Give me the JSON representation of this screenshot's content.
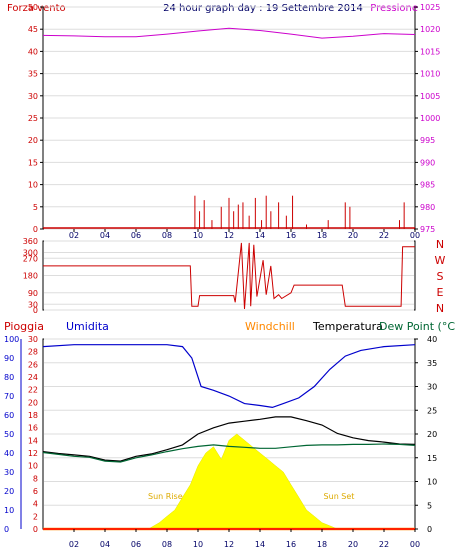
{
  "header": {
    "left_label": "Forza vento",
    "title": "24 hour graph day : 19 Settembre 2014",
    "right_label": "Pressione"
  },
  "bottom_header": {
    "rain": "Pioggia",
    "humidity": "Umidita",
    "windchill": "Windchill",
    "temperature": "Temperatura",
    "dewpoint": "Dew Point (°C"
  },
  "annotations": {
    "sunrise": "Sun Rise",
    "sunset": "Sun Set"
  },
  "colors": {
    "wind": "#cc0000",
    "pressure": "#cc00cc",
    "direction": "#cc0000",
    "humidity": "#0000cc",
    "temperature": "#000000",
    "dewpoint": "#006633",
    "windchill": "#ff8800",
    "solar": "#ffff00",
    "rain": "#ff0000"
  },
  "chart_data": [
    {
      "type": "line",
      "x_ticks": [
        "02",
        "04",
        "06",
        "08",
        "10",
        "12",
        "14",
        "16",
        "18",
        "20",
        "22",
        "00"
      ],
      "y_left": {
        "label": "Forza vento",
        "ticks": [
          0,
          5,
          10,
          15,
          20,
          25,
          30,
          35,
          40,
          45,
          50
        ],
        "range": [
          0,
          50
        ]
      },
      "y_right": {
        "label": "Pressione",
        "ticks": [
          975,
          980,
          985,
          990,
          995,
          1000,
          1005,
          1010,
          1015,
          1020,
          1025
        ],
        "range": [
          975,
          1025
        ]
      },
      "series": [
        {
          "name": "Pressione",
          "axis": "right",
          "x": [
            0,
            2,
            4,
            6,
            8,
            10,
            12,
            14,
            16,
            18,
            20,
            22,
            24
          ],
          "values": [
            1018.6,
            1018.5,
            1018.3,
            1018.3,
            1018.9,
            1019.6,
            1020.2,
            1019.7,
            1018.9,
            1018.0,
            1018.4,
            1019.0,
            1018.8
          ]
        },
        {
          "name": "Forza vento",
          "axis": "left",
          "x": [
            9.8,
            10.1,
            10.4,
            10.9,
            11.5,
            12.0,
            12.3,
            12.6,
            12.9,
            13.3,
            13.7,
            14.1,
            14.4,
            14.7,
            15.2,
            15.7,
            16.1,
            17.0,
            18.4,
            19.5,
            19.8,
            23.0,
            23.3
          ],
          "values": [
            7.5,
            4,
            6.5,
            2,
            5,
            7,
            4,
            5.5,
            6,
            3,
            7,
            2,
            7.5,
            4,
            6,
            3,
            7.5,
            1,
            2,
            6,
            5,
            2,
            6
          ]
        }
      ]
    },
    {
      "type": "line",
      "y_labels": [
        "N",
        "W",
        "S",
        "E",
        "N"
      ],
      "y_ticks": [
        0,
        30,
        90,
        180,
        270,
        300,
        360
      ],
      "range": [
        0,
        360
      ],
      "series": [
        {
          "name": "direction",
          "x": [
            0,
            9.5,
            9.6,
            10.0,
            10.1,
            12.3,
            12.4,
            12.8,
            13.0,
            13.3,
            13.4,
            13.6,
            13.8,
            14.2,
            14.4,
            14.7,
            14.9,
            15.2,
            15.4,
            16.0,
            16.2,
            19.3,
            19.5,
            23.1,
            23.2,
            24
          ],
          "values": [
            230,
            230,
            20,
            20,
            75,
            75,
            40,
            350,
            5,
            350,
            20,
            340,
            70,
            260,
            80,
            230,
            60,
            80,
            60,
            90,
            130,
            130,
            20,
            20,
            330,
            330
          ]
        }
      ]
    },
    {
      "type": "line",
      "x_ticks": [
        "02",
        "04",
        "06",
        "08",
        "10",
        "12",
        "14",
        "16",
        "18",
        "20",
        "22",
        "00"
      ],
      "y_left_outer": {
        "label": "Umidita",
        "ticks": [
          0,
          10,
          20,
          30,
          40,
          50,
          60,
          70,
          80,
          90,
          100
        ],
        "range": [
          0,
          100
        ]
      },
      "y_left_inner": {
        "label": "Pioggia",
        "ticks": [
          0,
          2,
          4,
          6,
          8,
          10,
          12,
          14,
          16,
          18,
          20,
          22,
          24,
          26,
          28,
          30
        ],
        "range": [
          0,
          30
        ]
      },
      "y_right": {
        "label": "Temperatura",
        "ticks": [
          0,
          5,
          10,
          15,
          20,
          25,
          30,
          35,
          40
        ],
        "range": [
          0,
          40
        ]
      },
      "series": [
        {
          "name": "Umidita",
          "axis": "left_outer",
          "x": [
            0,
            2,
            4,
            6,
            8,
            9,
            9.6,
            10.2,
            11,
            12,
            13,
            14,
            14.8,
            15.5,
            16.5,
            17.5,
            18.5,
            19.5,
            20.5,
            22,
            24
          ],
          "values": [
            96,
            97,
            97,
            97,
            97,
            96,
            90,
            75,
            73,
            70,
            66,
            65,
            64,
            66,
            69,
            75,
            84,
            91,
            94,
            96,
            97
          ]
        },
        {
          "name": "Temperatura",
          "axis": "right",
          "x": [
            0,
            1,
            2,
            3,
            4,
            5,
            6,
            7,
            8,
            9,
            10,
            11,
            12,
            13,
            14,
            15,
            16,
            17,
            18,
            19,
            20,
            21,
            22,
            23,
            24
          ],
          "values": [
            16.3,
            15.9,
            15.6,
            15.3,
            14.5,
            14.3,
            15.3,
            15.8,
            16.7,
            17.7,
            20.0,
            21.3,
            22.3,
            22.7,
            23.1,
            23.6,
            23.6,
            22.8,
            21.9,
            20.1,
            19.2,
            18.6,
            18.3,
            17.9,
            17.8
          ]
        },
        {
          "name": "Dew Point",
          "axis": "right",
          "x": [
            0,
            1,
            2,
            3,
            4,
            5,
            6,
            7,
            8,
            9,
            10,
            11,
            12,
            13,
            14,
            15,
            16,
            17,
            18,
            19,
            20,
            21,
            22,
            23,
            24
          ],
          "values": [
            16.1,
            15.7,
            15.3,
            15.1,
            14.3,
            14.1,
            15.0,
            15.6,
            16.3,
            16.9,
            17.4,
            17.7,
            17.4,
            17.2,
            17.0,
            17.0,
            17.3,
            17.6,
            17.7,
            17.7,
            17.8,
            17.8,
            17.9,
            17.8,
            17.6
          ]
        },
        {
          "name": "Windchill",
          "axis": "right",
          "x": [
            0,
            24
          ],
          "values": [
            0,
            0
          ]
        },
        {
          "name": "solar",
          "axis": "left_inner",
          "x": [
            6.8,
            7.5,
            8,
            8.5,
            9,
            9.5,
            10,
            10.5,
            11,
            11.5,
            12,
            12.5,
            13,
            13.5,
            14,
            14.5,
            15,
            15.5,
            16,
            16.5,
            17,
            17.5,
            18,
            18.5,
            19
          ],
          "values": [
            0,
            1,
            2,
            3,
            5,
            7,
            10,
            12,
            13,
            11,
            14,
            15,
            14,
            13,
            12,
            11,
            10,
            9,
            7,
            5,
            3,
            2,
            1,
            0.5,
            0
          ]
        },
        {
          "name": "Pioggia",
          "axis": "left_inner",
          "x": [
            0,
            24
          ],
          "values": [
            0,
            0
          ]
        }
      ]
    }
  ]
}
